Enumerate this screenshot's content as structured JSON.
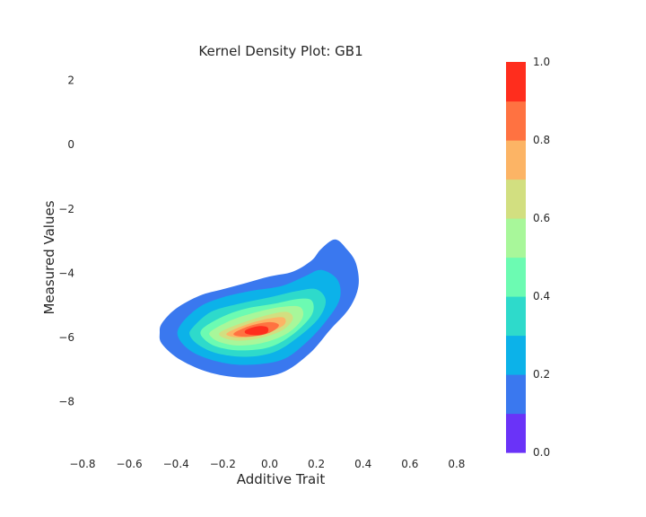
{
  "chart_data": {
    "type": "heatmap",
    "subtype": "kde-contourf",
    "title": "Kernel Density Plot: GB1",
    "xlabel": "Additive Trait",
    "ylabel": "Measured Values",
    "xlim": [
      -0.8,
      0.95
    ],
    "ylim": [
      -9.6,
      2.6
    ],
    "xticks": [
      -0.8,
      -0.6,
      -0.4,
      -0.2,
      0.0,
      0.2,
      0.4,
      0.6,
      0.8
    ],
    "xtick_labels": [
      "−0.8",
      "−0.6",
      "−0.4",
      "−0.2",
      "0.0",
      "0.2",
      "0.4",
      "0.6",
      "0.8"
    ],
    "yticks": [
      2,
      0,
      -2,
      -4,
      -6,
      -8
    ],
    "ytick_labels": [
      "2",
      "0",
      "−2",
      "−4",
      "−6",
      "−8"
    ],
    "grid": false,
    "colorbar": {
      "levels": [
        0.0,
        0.1,
        0.2,
        0.3,
        0.4,
        0.5,
        0.6,
        0.7,
        0.8,
        0.9,
        1.0
      ],
      "tick_values": [
        0.0,
        0.2,
        0.4,
        0.6,
        0.8,
        1.0
      ],
      "tick_labels": [
        "0.0",
        "0.2",
        "0.4",
        "0.6",
        "0.8",
        "1.0"
      ],
      "colors": [
        "#6a33f8",
        "#3a78ef",
        "#0cb2e9",
        "#2edacb",
        "#6cfbb2",
        "#a8f79a",
        "#d2df80",
        "#fcb465",
        "#ff7241",
        "#ff2d1d"
      ],
      "placement": "right"
    },
    "density": {
      "peak": {
        "x": -0.05,
        "y": -5.8
      },
      "levels": [
        {
          "level": 0.1,
          "color": "#3a78ef",
          "points": [
            [
              -0.46,
              -5.55
            ],
            [
              -0.4,
              -5.1
            ],
            [
              -0.3,
              -4.7
            ],
            [
              -0.2,
              -4.5
            ],
            [
              -0.1,
              -4.3
            ],
            [
              0.0,
              -4.1
            ],
            [
              0.1,
              -3.95
            ],
            [
              0.18,
              -3.6
            ],
            [
              0.22,
              -3.25
            ],
            [
              0.28,
              -2.95
            ],
            [
              0.33,
              -3.25
            ],
            [
              0.37,
              -3.7
            ],
            [
              0.38,
              -4.4
            ],
            [
              0.34,
              -5.1
            ],
            [
              0.26,
              -5.75
            ],
            [
              0.17,
              -6.5
            ],
            [
              0.05,
              -7.1
            ],
            [
              -0.1,
              -7.25
            ],
            [
              -0.25,
              -7.1
            ],
            [
              -0.38,
              -6.7
            ],
            [
              -0.46,
              -6.2
            ],
            [
              -0.47,
              -5.85
            ]
          ]
        },
        {
          "level": 0.2,
          "color": "#0cb2e9",
          "points": [
            [
              -0.38,
              -5.6
            ],
            [
              -0.3,
              -5.05
            ],
            [
              -0.2,
              -4.75
            ],
            [
              -0.08,
              -4.55
            ],
            [
              0.05,
              -4.4
            ],
            [
              0.15,
              -4.1
            ],
            [
              0.22,
              -3.9
            ],
            [
              0.29,
              -4.2
            ],
            [
              0.3,
              -4.8
            ],
            [
              0.24,
              -5.5
            ],
            [
              0.15,
              -6.2
            ],
            [
              0.05,
              -6.7
            ],
            [
              -0.1,
              -6.85
            ],
            [
              -0.22,
              -6.75
            ],
            [
              -0.33,
              -6.45
            ],
            [
              -0.39,
              -6.0
            ]
          ]
        },
        {
          "level": 0.3,
          "color": "#2edacb",
          "points": [
            [
              -0.33,
              -5.7
            ],
            [
              -0.25,
              -5.2
            ],
            [
              -0.13,
              -4.95
            ],
            [
              0.0,
              -4.75
            ],
            [
              0.12,
              -4.55
            ],
            [
              0.2,
              -4.5
            ],
            [
              0.24,
              -4.85
            ],
            [
              0.21,
              -5.4
            ],
            [
              0.12,
              -6.0
            ],
            [
              0.02,
              -6.45
            ],
            [
              -0.1,
              -6.6
            ],
            [
              -0.22,
              -6.5
            ],
            [
              -0.3,
              -6.25
            ],
            [
              -0.34,
              -5.95
            ]
          ]
        },
        {
          "level": 0.4,
          "color": "#6cfbb2",
          "points": [
            [
              -0.29,
              -5.75
            ],
            [
              -0.2,
              -5.35
            ],
            [
              -0.1,
              -5.1
            ],
            [
              0.02,
              -4.95
            ],
            [
              0.12,
              -4.8
            ],
            [
              0.18,
              -4.85
            ],
            [
              0.18,
              -5.3
            ],
            [
              0.1,
              -5.9
            ],
            [
              0.0,
              -6.3
            ],
            [
              -0.12,
              -6.4
            ],
            [
              -0.22,
              -6.3
            ],
            [
              -0.28,
              -6.05
            ]
          ]
        },
        {
          "level": 0.5,
          "color": "#a8f79a",
          "points": [
            [
              -0.25,
              -5.8
            ],
            [
              -0.16,
              -5.45
            ],
            [
              -0.05,
              -5.2
            ],
            [
              0.05,
              -5.05
            ],
            [
              0.13,
              -5.05
            ],
            [
              0.14,
              -5.4
            ],
            [
              0.08,
              -5.85
            ],
            [
              -0.02,
              -6.15
            ],
            [
              -0.13,
              -6.25
            ],
            [
              -0.21,
              -6.15
            ],
            [
              -0.25,
              -5.98
            ]
          ]
        },
        {
          "level": 0.6,
          "color": "#d2df80",
          "points": [
            [
              -0.21,
              -5.83
            ],
            [
              -0.12,
              -5.55
            ],
            [
              -0.02,
              -5.32
            ],
            [
              0.07,
              -5.2
            ],
            [
              0.1,
              -5.4
            ],
            [
              0.06,
              -5.75
            ],
            [
              -0.03,
              -6.0
            ],
            [
              -0.13,
              -6.1
            ],
            [
              -0.2,
              -6.0
            ]
          ]
        },
        {
          "level": 0.7,
          "color": "#fcb465",
          "points": [
            [
              -0.18,
              -5.85
            ],
            [
              -0.1,
              -5.6
            ],
            [
              -0.01,
              -5.42
            ],
            [
              0.06,
              -5.38
            ],
            [
              0.06,
              -5.62
            ],
            [
              -0.02,
              -5.88
            ],
            [
              -0.11,
              -6.0
            ],
            [
              -0.17,
              -5.96
            ]
          ]
        },
        {
          "level": 0.8,
          "color": "#ff7241",
          "points": [
            [
              -0.15,
              -5.85
            ],
            [
              -0.08,
              -5.63
            ],
            [
              0.0,
              -5.52
            ],
            [
              0.04,
              -5.62
            ],
            [
              0.0,
              -5.85
            ],
            [
              -0.08,
              -5.97
            ],
            [
              -0.14,
              -5.95
            ]
          ]
        },
        {
          "level": 0.9,
          "color": "#ff2d1d",
          "points": [
            [
              -0.1,
              -5.76
            ],
            [
              -0.05,
              -5.65
            ],
            [
              -0.01,
              -5.68
            ],
            [
              -0.01,
              -5.85
            ],
            [
              -0.05,
              -5.93
            ],
            [
              -0.1,
              -5.88
            ]
          ]
        }
      ]
    }
  }
}
